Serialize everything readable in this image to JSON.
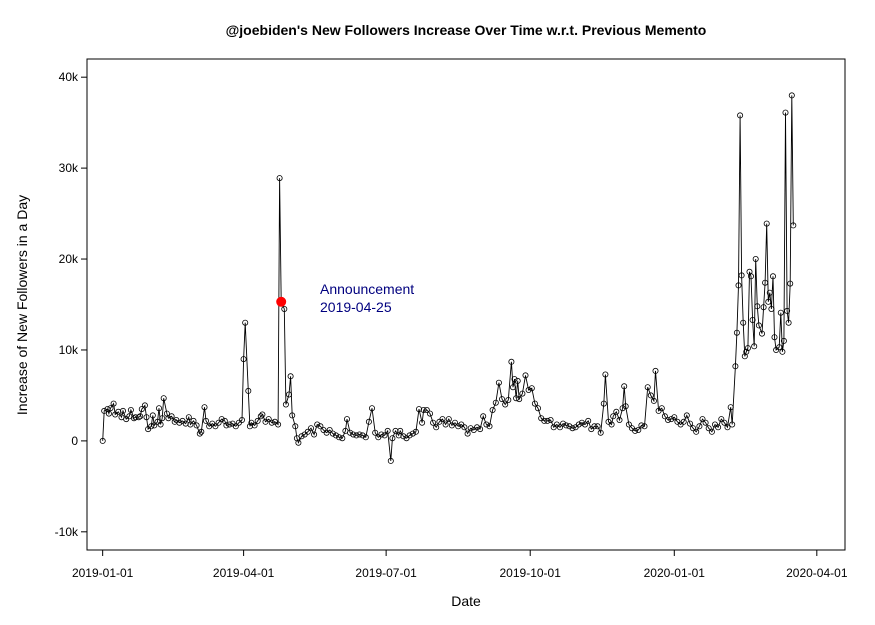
{
  "chart_data": {
    "type": "line",
    "title": "@joebiden's New Followers Increase Over Time w.r.t. Previous Memento",
    "xlabel": "Date",
    "ylabel": "Increase of New Followers in a Day",
    "x_ticks": [
      "2019-01-01",
      "2019-04-01",
      "2019-07-01",
      "2019-10-01",
      "2020-01-01",
      "2020-04-01"
    ],
    "y_ticks": [
      {
        "value": -10000,
        "label": "-10k"
      },
      {
        "value": 0,
        "label": "0"
      },
      {
        "value": 10000,
        "label": "10k"
      },
      {
        "value": 20000,
        "label": "20k"
      },
      {
        "value": 30000,
        "label": "30k"
      },
      {
        "value": 40000,
        "label": "40k"
      }
    ],
    "xlim": [
      "2018-12-22",
      "2020-04-19"
    ],
    "ylim": [
      -12000,
      42000
    ],
    "grid": false,
    "marker": "open-circle",
    "line_color": "#000000",
    "series": [
      {
        "points": [
          [
            "2019-01-01",
            0
          ],
          [
            "2019-01-02",
            3300
          ],
          [
            "2019-01-04",
            3500
          ],
          [
            "2019-01-05",
            3000
          ],
          [
            "2019-01-06",
            3600
          ],
          [
            "2019-01-08",
            4100
          ],
          [
            "2019-01-09",
            2900
          ],
          [
            "2019-01-11",
            3200
          ],
          [
            "2019-01-13",
            2600
          ],
          [
            "2019-01-14",
            3300
          ],
          [
            "2019-01-16",
            2400
          ],
          [
            "2019-01-18",
            2700
          ],
          [
            "2019-01-19",
            3400
          ],
          [
            "2019-01-21",
            2500
          ],
          [
            "2019-01-22",
            2600
          ],
          [
            "2019-01-24",
            2600
          ],
          [
            "2019-01-25",
            2700
          ],
          [
            "2019-01-26",
            3500
          ],
          [
            "2019-01-28",
            3900
          ],
          [
            "2019-01-29",
            2600
          ],
          [
            "2019-01-30",
            1300
          ],
          [
            "2019-02-01",
            1600
          ],
          [
            "2019-02-02",
            2800
          ],
          [
            "2019-02-03",
            1700
          ],
          [
            "2019-02-05",
            2100
          ],
          [
            "2019-02-06",
            3600
          ],
          [
            "2019-02-07",
            1800
          ],
          [
            "2019-02-08",
            2500
          ],
          [
            "2019-02-09",
            4700
          ],
          [
            "2019-02-11",
            3000
          ],
          [
            "2019-02-12",
            2500
          ],
          [
            "2019-02-14",
            2700
          ],
          [
            "2019-02-16",
            2100
          ],
          [
            "2019-02-17",
            2300
          ],
          [
            "2019-02-19",
            2000
          ],
          [
            "2019-02-21",
            2200
          ],
          [
            "2019-02-23",
            1900
          ],
          [
            "2019-02-25",
            2600
          ],
          [
            "2019-02-26",
            1800
          ],
          [
            "2019-02-28",
            2200
          ],
          [
            "2019-03-02",
            1700
          ],
          [
            "2019-03-04",
            800
          ],
          [
            "2019-03-05",
            1000
          ],
          [
            "2019-03-07",
            3700
          ],
          [
            "2019-03-08",
            2200
          ],
          [
            "2019-03-10",
            1600
          ],
          [
            "2019-03-12",
            1900
          ],
          [
            "2019-03-14",
            1600
          ],
          [
            "2019-03-16",
            2000
          ],
          [
            "2019-03-18",
            2400
          ],
          [
            "2019-03-20",
            2200
          ],
          [
            "2019-03-21",
            1700
          ],
          [
            "2019-03-23",
            1800
          ],
          [
            "2019-03-25",
            1900
          ],
          [
            "2019-03-27",
            1600
          ],
          [
            "2019-03-29",
            2000
          ],
          [
            "2019-03-31",
            2300
          ],
          [
            "2019-04-01",
            9000
          ],
          [
            "2019-04-02",
            13000
          ],
          [
            "2019-04-04",
            5500
          ],
          [
            "2019-04-05",
            1600
          ],
          [
            "2019-04-06",
            2000
          ],
          [
            "2019-04-08",
            1700
          ],
          [
            "2019-04-10",
            2200
          ],
          [
            "2019-04-12",
            2700
          ],
          [
            "2019-04-13",
            2900
          ],
          [
            "2019-04-15",
            2100
          ],
          [
            "2019-04-17",
            2400
          ],
          [
            "2019-04-19",
            2000
          ],
          [
            "2019-04-21",
            2100
          ],
          [
            "2019-04-23",
            1800
          ],
          [
            "2019-04-24",
            28900
          ],
          [
            "2019-04-25",
            15300
          ],
          [
            "2019-04-27",
            14500
          ],
          [
            "2019-04-28",
            4000
          ],
          [
            "2019-04-30",
            5100
          ],
          [
            "2019-05-01",
            7100
          ],
          [
            "2019-05-02",
            2800
          ],
          [
            "2019-05-04",
            1600
          ],
          [
            "2019-05-05",
            300
          ],
          [
            "2019-05-06",
            -200
          ],
          [
            "2019-05-08",
            500
          ],
          [
            "2019-05-10",
            700
          ],
          [
            "2019-05-12",
            1000
          ],
          [
            "2019-05-14",
            1400
          ],
          [
            "2019-05-16",
            700
          ],
          [
            "2019-05-18",
            1800
          ],
          [
            "2019-05-20",
            1600
          ],
          [
            "2019-05-22",
            1200
          ],
          [
            "2019-05-24",
            900
          ],
          [
            "2019-05-26",
            1200
          ],
          [
            "2019-05-28",
            800
          ],
          [
            "2019-05-30",
            600
          ],
          [
            "2019-06-01",
            400
          ],
          [
            "2019-06-03",
            300
          ],
          [
            "2019-06-05",
            1100
          ],
          [
            "2019-06-06",
            2400
          ],
          [
            "2019-06-08",
            900
          ],
          [
            "2019-06-10",
            700
          ],
          [
            "2019-06-12",
            600
          ],
          [
            "2019-06-14",
            700
          ],
          [
            "2019-06-16",
            600
          ],
          [
            "2019-06-18",
            400
          ],
          [
            "2019-06-20",
            2100
          ],
          [
            "2019-06-22",
            3600
          ],
          [
            "2019-06-24",
            900
          ],
          [
            "2019-06-26",
            400
          ],
          [
            "2019-06-28",
            700
          ],
          [
            "2019-06-30",
            600
          ],
          [
            "2019-07-02",
            1100
          ],
          [
            "2019-07-04",
            -2200
          ],
          [
            "2019-07-05",
            300
          ],
          [
            "2019-07-07",
            1100
          ],
          [
            "2019-07-09",
            600
          ],
          [
            "2019-07-10",
            1100
          ],
          [
            "2019-07-12",
            500
          ],
          [
            "2019-07-14",
            300
          ],
          [
            "2019-07-16",
            600
          ],
          [
            "2019-07-18",
            800
          ],
          [
            "2019-07-20",
            1000
          ],
          [
            "2019-07-22",
            3500
          ],
          [
            "2019-07-24",
            2000
          ],
          [
            "2019-07-25",
            3400
          ],
          [
            "2019-07-27",
            3400
          ],
          [
            "2019-07-29",
            3000
          ],
          [
            "2019-07-31",
            2000
          ],
          [
            "2019-08-02",
            1500
          ],
          [
            "2019-08-04",
            2100
          ],
          [
            "2019-08-06",
            2400
          ],
          [
            "2019-08-08",
            1800
          ],
          [
            "2019-08-10",
            2400
          ],
          [
            "2019-08-12",
            1700
          ],
          [
            "2019-08-14",
            2000
          ],
          [
            "2019-08-16",
            1600
          ],
          [
            "2019-08-18",
            1800
          ],
          [
            "2019-08-20",
            1500
          ],
          [
            "2019-08-22",
            800
          ],
          [
            "2019-08-24",
            1400
          ],
          [
            "2019-08-26",
            1200
          ],
          [
            "2019-08-28",
            1500
          ],
          [
            "2019-08-30",
            1300
          ],
          [
            "2019-09-01",
            2700
          ],
          [
            "2019-09-03",
            1800
          ],
          [
            "2019-09-05",
            1600
          ],
          [
            "2019-09-07",
            3400
          ],
          [
            "2019-09-09",
            4200
          ],
          [
            "2019-09-11",
            6400
          ],
          [
            "2019-09-13",
            4600
          ],
          [
            "2019-09-15",
            4000
          ],
          [
            "2019-09-17",
            4500
          ],
          [
            "2019-09-19",
            8700
          ],
          [
            "2019-09-20",
            5900
          ],
          [
            "2019-09-21",
            6800
          ],
          [
            "2019-09-22",
            4700
          ],
          [
            "2019-09-23",
            6600
          ],
          [
            "2019-09-24",
            4600
          ],
          [
            "2019-09-26",
            5200
          ],
          [
            "2019-09-28",
            7200
          ],
          [
            "2019-09-30",
            5600
          ],
          [
            "2019-10-02",
            5800
          ],
          [
            "2019-10-04",
            4100
          ],
          [
            "2019-10-06",
            3600
          ],
          [
            "2019-10-08",
            2500
          ],
          [
            "2019-10-10",
            2200
          ],
          [
            "2019-10-12",
            2200
          ],
          [
            "2019-10-14",
            2300
          ],
          [
            "2019-10-16",
            1500
          ],
          [
            "2019-10-18",
            1800
          ],
          [
            "2019-10-20",
            1500
          ],
          [
            "2019-10-22",
            1900
          ],
          [
            "2019-10-24",
            1700
          ],
          [
            "2019-10-26",
            1600
          ],
          [
            "2019-10-28",
            1400
          ],
          [
            "2019-10-30",
            1500
          ],
          [
            "2019-11-01",
            1800
          ],
          [
            "2019-11-03",
            2000
          ],
          [
            "2019-11-05",
            1800
          ],
          [
            "2019-11-07",
            2200
          ],
          [
            "2019-11-09",
            1300
          ],
          [
            "2019-11-11",
            1600
          ],
          [
            "2019-11-13",
            1600
          ],
          [
            "2019-11-15",
            900
          ],
          [
            "2019-11-17",
            4100
          ],
          [
            "2019-11-18",
            7300
          ],
          [
            "2019-11-20",
            2100
          ],
          [
            "2019-11-22",
            1800
          ],
          [
            "2019-11-23",
            2700
          ],
          [
            "2019-11-25",
            3200
          ],
          [
            "2019-11-27",
            2300
          ],
          [
            "2019-11-29",
            3600
          ],
          [
            "2019-11-30",
            6000
          ],
          [
            "2019-12-01",
            3800
          ],
          [
            "2019-12-03",
            1800
          ],
          [
            "2019-12-05",
            1400
          ],
          [
            "2019-12-07",
            1100
          ],
          [
            "2019-12-09",
            1200
          ],
          [
            "2019-12-11",
            1700
          ],
          [
            "2019-12-13",
            1600
          ],
          [
            "2019-12-15",
            5900
          ],
          [
            "2019-12-17",
            5000
          ],
          [
            "2019-12-19",
            4400
          ],
          [
            "2019-12-20",
            7700
          ],
          [
            "2019-12-22",
            3300
          ],
          [
            "2019-12-24",
            3600
          ],
          [
            "2019-12-26",
            2700
          ],
          [
            "2019-12-28",
            2300
          ],
          [
            "2019-12-30",
            2400
          ],
          [
            "2020-01-01",
            2600
          ],
          [
            "2020-01-03",
            2100
          ],
          [
            "2020-01-05",
            1800
          ],
          [
            "2020-01-07",
            2100
          ],
          [
            "2020-01-09",
            2800
          ],
          [
            "2020-01-11",
            1900
          ],
          [
            "2020-01-13",
            1400
          ],
          [
            "2020-01-15",
            1000
          ],
          [
            "2020-01-17",
            1600
          ],
          [
            "2020-01-19",
            2400
          ],
          [
            "2020-01-21",
            2000
          ],
          [
            "2020-01-23",
            1400
          ],
          [
            "2020-01-25",
            1000
          ],
          [
            "2020-01-27",
            1800
          ],
          [
            "2020-01-29",
            1500
          ],
          [
            "2020-01-31",
            2400
          ],
          [
            "2020-02-02",
            2000
          ],
          [
            "2020-02-04",
            1500
          ],
          [
            "2020-02-06",
            3700
          ],
          [
            "2020-02-07",
            1800
          ],
          [
            "2020-02-09",
            8200
          ],
          [
            "2020-02-10",
            11900
          ],
          [
            "2020-02-11",
            17100
          ],
          [
            "2020-02-12",
            35800
          ],
          [
            "2020-02-13",
            18200
          ],
          [
            "2020-02-14",
            13000
          ],
          [
            "2020-02-15",
            9300
          ],
          [
            "2020-02-16",
            9800
          ],
          [
            "2020-02-17",
            10200
          ],
          [
            "2020-02-18",
            18600
          ],
          [
            "2020-02-19",
            18100
          ],
          [
            "2020-02-20",
            13300
          ],
          [
            "2020-02-21",
            10400
          ],
          [
            "2020-02-22",
            20000
          ],
          [
            "2020-02-23",
            14800
          ],
          [
            "2020-02-24",
            12700
          ],
          [
            "2020-02-26",
            11800
          ],
          [
            "2020-02-27",
            14700
          ],
          [
            "2020-02-28",
            17400
          ],
          [
            "2020-02-29",
            23900
          ],
          [
            "2020-03-01",
            15300
          ],
          [
            "2020-03-02",
            16300
          ],
          [
            "2020-03-03",
            14500
          ],
          [
            "2020-03-04",
            18100
          ],
          [
            "2020-03-05",
            11400
          ],
          [
            "2020-03-06",
            10000
          ],
          [
            "2020-03-08",
            10300
          ],
          [
            "2020-03-09",
            14100
          ],
          [
            "2020-03-10",
            9800
          ],
          [
            "2020-03-11",
            11000
          ],
          [
            "2020-03-12",
            36100
          ],
          [
            "2020-03-13",
            14300
          ],
          [
            "2020-03-14",
            13000
          ],
          [
            "2020-03-15",
            17300
          ],
          [
            "2020-03-16",
            38000
          ],
          [
            "2020-03-17",
            23700
          ]
        ]
      }
    ],
    "annotation": {
      "text_line1": "Announcement",
      "text_line2": "2019-04-25",
      "x": "2019-04-25",
      "y": 15300,
      "marker_color": "#ff0000",
      "text_color": "#00007f"
    }
  }
}
